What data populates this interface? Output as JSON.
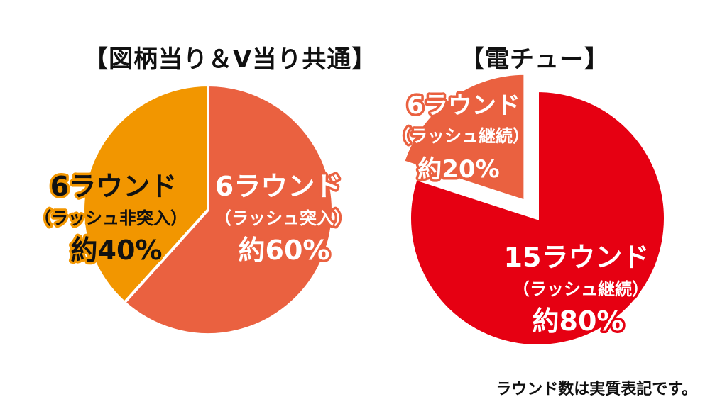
{
  "footnote": "ラウンド数は実質表記です。",
  "colors": {
    "orange": "#F29600",
    "coral": "#EA6140",
    "red": "#E60012",
    "label_dark": "#111111",
    "label_light": "#ffffff",
    "outline_orange": "#F29600",
    "outline_coral": "#EA6140"
  },
  "chart_data": [
    {
      "type": "pie",
      "title": "【図柄当り＆V当り共通】",
      "slices": [
        {
          "name": "6ラウンド",
          "sub": "（ラッシュ突入）",
          "pct_label": "約60%",
          "value": 60,
          "color": "#EA6140"
        },
        {
          "name": "6ラウンド",
          "sub": "（ラッシュ非突入）",
          "pct_label": "約40%",
          "value": 40,
          "color": "#F29600"
        }
      ]
    },
    {
      "type": "pie",
      "title": "【電チュー】",
      "slices": [
        {
          "name": "15ラウンド",
          "sub": "（ラッシュ継続）",
          "pct_label": "約80%",
          "value": 80,
          "color": "#E60012"
        },
        {
          "name": "6ラウンド",
          "sub": "（ラッシュ継続）",
          "pct_label": "約20%",
          "value": 20,
          "color": "#EA6140"
        }
      ]
    }
  ]
}
